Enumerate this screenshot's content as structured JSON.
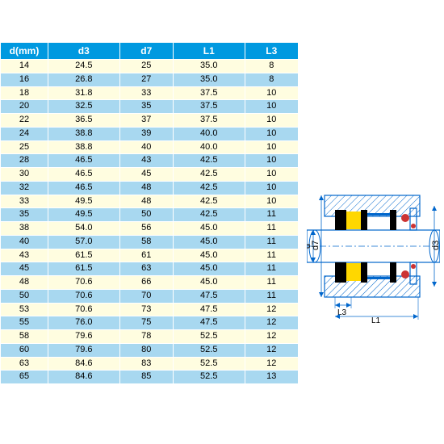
{
  "table": {
    "columns": [
      "d(mm)",
      "d3",
      "d7",
      "L1",
      "L3"
    ],
    "rows": [
      [
        "14",
        "24.5",
        "25",
        "35.0",
        "8"
      ],
      [
        "16",
        "26.8",
        "27",
        "35.0",
        "8"
      ],
      [
        "18",
        "31.8",
        "33",
        "37.5",
        "10"
      ],
      [
        "20",
        "32.5",
        "35",
        "37.5",
        "10"
      ],
      [
        "22",
        "36.5",
        "37",
        "37.5",
        "10"
      ],
      [
        "24",
        "38.8",
        "39",
        "40.0",
        "10"
      ],
      [
        "25",
        "38.8",
        "40",
        "40.0",
        "10"
      ],
      [
        "28",
        "46.5",
        "43",
        "42.5",
        "10"
      ],
      [
        "30",
        "46.5",
        "45",
        "42.5",
        "10"
      ],
      [
        "32",
        "46.5",
        "48",
        "42.5",
        "10"
      ],
      [
        "33",
        "49.5",
        "48",
        "42.5",
        "10"
      ],
      [
        "35",
        "49.5",
        "50",
        "42.5",
        "11"
      ],
      [
        "38",
        "54.0",
        "56",
        "45.0",
        "11"
      ],
      [
        "40",
        "57.0",
        "58",
        "45.0",
        "11"
      ],
      [
        "43",
        "61.5",
        "61",
        "45.0",
        "11"
      ],
      [
        "45",
        "61.5",
        "63",
        "45.0",
        "11"
      ],
      [
        "48",
        "70.6",
        "66",
        "45.0",
        "11"
      ],
      [
        "50",
        "70.6",
        "70",
        "47.5",
        "11"
      ],
      [
        "53",
        "70.6",
        "73",
        "47.5",
        "12"
      ],
      [
        "55",
        "76.0",
        "75",
        "47.5",
        "12"
      ],
      [
        "58",
        "79.6",
        "78",
        "52.5",
        "12"
      ],
      [
        "60",
        "79.6",
        "80",
        "52.5",
        "12"
      ],
      [
        "63",
        "84.6",
        "83",
        "52.5",
        "12"
      ],
      [
        "65",
        "84.6",
        "85",
        "52.5",
        "13"
      ]
    ],
    "header_bg": "#0099e0",
    "header_fg": "#ffffff",
    "row_colors": [
      "#fffde0",
      "#a8d8f0"
    ],
    "border_color": "#ffffff",
    "font_size_header": 12,
    "font_size_body": 11
  },
  "diagram": {
    "labels": {
      "d": "d",
      "d3": "d3",
      "d7": "d7",
      "L1": "L1",
      "L3": "L3"
    },
    "colors": {
      "outline": "#0066cc",
      "hatch": "#0066cc",
      "black": "#000000",
      "yellow": "#ffd700",
      "red": "#cc3333",
      "shaft": "#ffffff"
    }
  }
}
